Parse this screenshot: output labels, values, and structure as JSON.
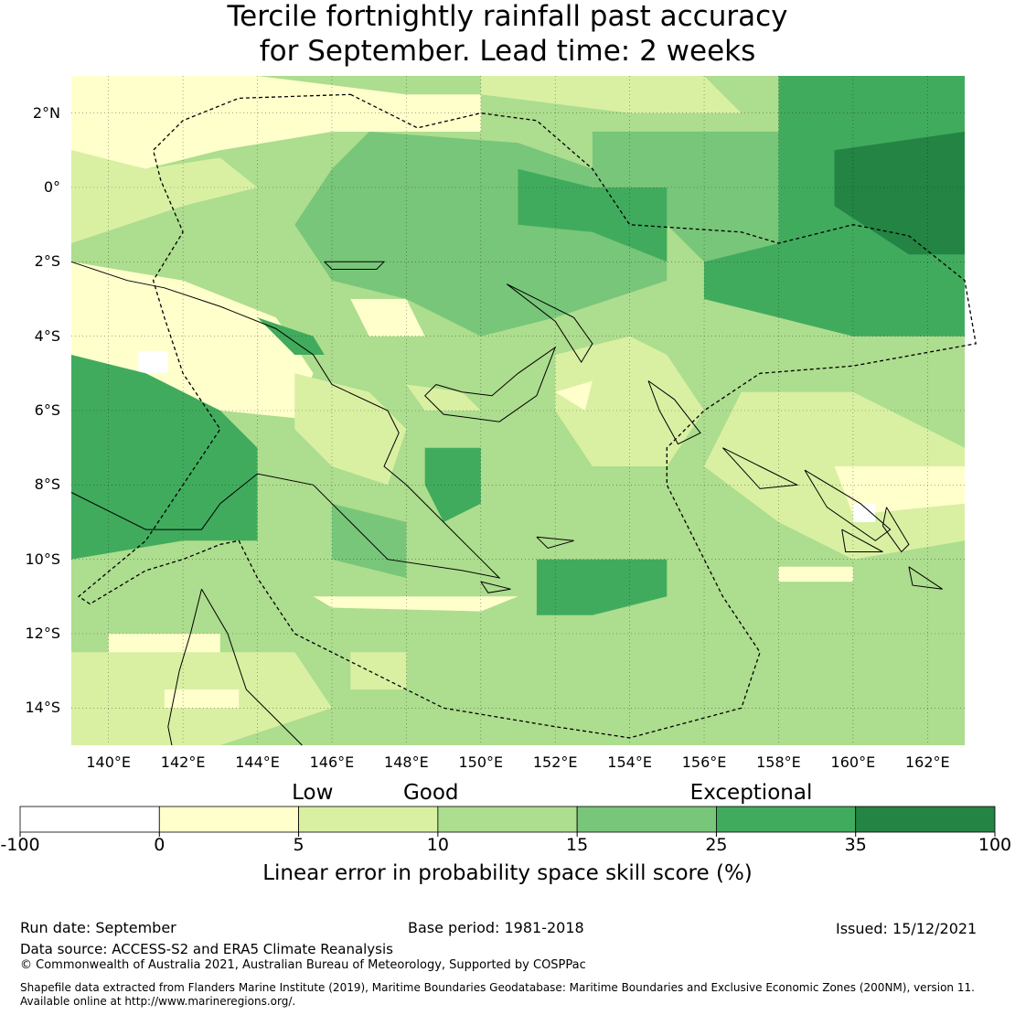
{
  "title": {
    "line1": "Tercile fortnightly rainfall past accuracy",
    "line2": "for September. Lead time: 2 weeks"
  },
  "map": {
    "lat_ticks": [
      {
        "value": 2,
        "label": "2°N"
      },
      {
        "value": 0,
        "label": "0°"
      },
      {
        "value": -2,
        "label": "2°S"
      },
      {
        "value": -4,
        "label": "4°S"
      },
      {
        "value": -6,
        "label": "6°S"
      },
      {
        "value": -8,
        "label": "8°S"
      },
      {
        "value": -10,
        "label": "10°S"
      },
      {
        "value": -12,
        "label": "12°S"
      },
      {
        "value": -14,
        "label": "14°S"
      }
    ],
    "lon_ticks": [
      {
        "value": 140,
        "label": "140°E"
      },
      {
        "value": 142,
        "label": "142°E"
      },
      {
        "value": 144,
        "label": "144°E"
      },
      {
        "value": 146,
        "label": "146°E"
      },
      {
        "value": 148,
        "label": "148°E"
      },
      {
        "value": 150,
        "label": "150°E"
      },
      {
        "value": 152,
        "label": "152°E"
      },
      {
        "value": 154,
        "label": "154°E"
      },
      {
        "value": 156,
        "label": "156°E"
      },
      {
        "value": 158,
        "label": "158°E"
      },
      {
        "value": 160,
        "label": "160°E"
      },
      {
        "value": 162,
        "label": "162°E"
      }
    ],
    "extent": {
      "lon_min": 139,
      "lon_max": 163,
      "lat_min": -15,
      "lat_max": 3
    }
  },
  "legend": {
    "categories": [
      {
        "label": "Low",
        "at": 2.1
      },
      {
        "label": "Good",
        "at": 2.95
      },
      {
        "label": "Exceptional",
        "at": 5.25
      }
    ],
    "ticks": [
      "-100",
      "0",
      "5",
      "10",
      "15",
      "25",
      "35",
      "100"
    ],
    "colors": [
      "#ffffff",
      "#ffffcc",
      "#d9f0a3",
      "#addd8e",
      "#78c679",
      "#41ab5d",
      "#238443"
    ],
    "label": "Linear error in probability space skill score (%)"
  },
  "footer": {
    "run_date": "Run date: September",
    "base_period": "Base period: 1981-2018",
    "issued": "Issued: 15/12/2021",
    "data_source": "Data source: ACCESS-S2 and ERA5 Climate Reanalysis",
    "copyright": "© Commonwealth of Australia 2021, Australian Bureau of Meteorology, Supported by COSPPac",
    "shapefile_line1": "Shapefile data extracted from Flanders Marine Institute (2019), Maritime Boundaries Geodatabase: Maritime Boundaries and Exclusive Economic Zones (200NM), version 11.",
    "shapefile_line2": "Available online at http://www.marineregions.org/."
  }
}
